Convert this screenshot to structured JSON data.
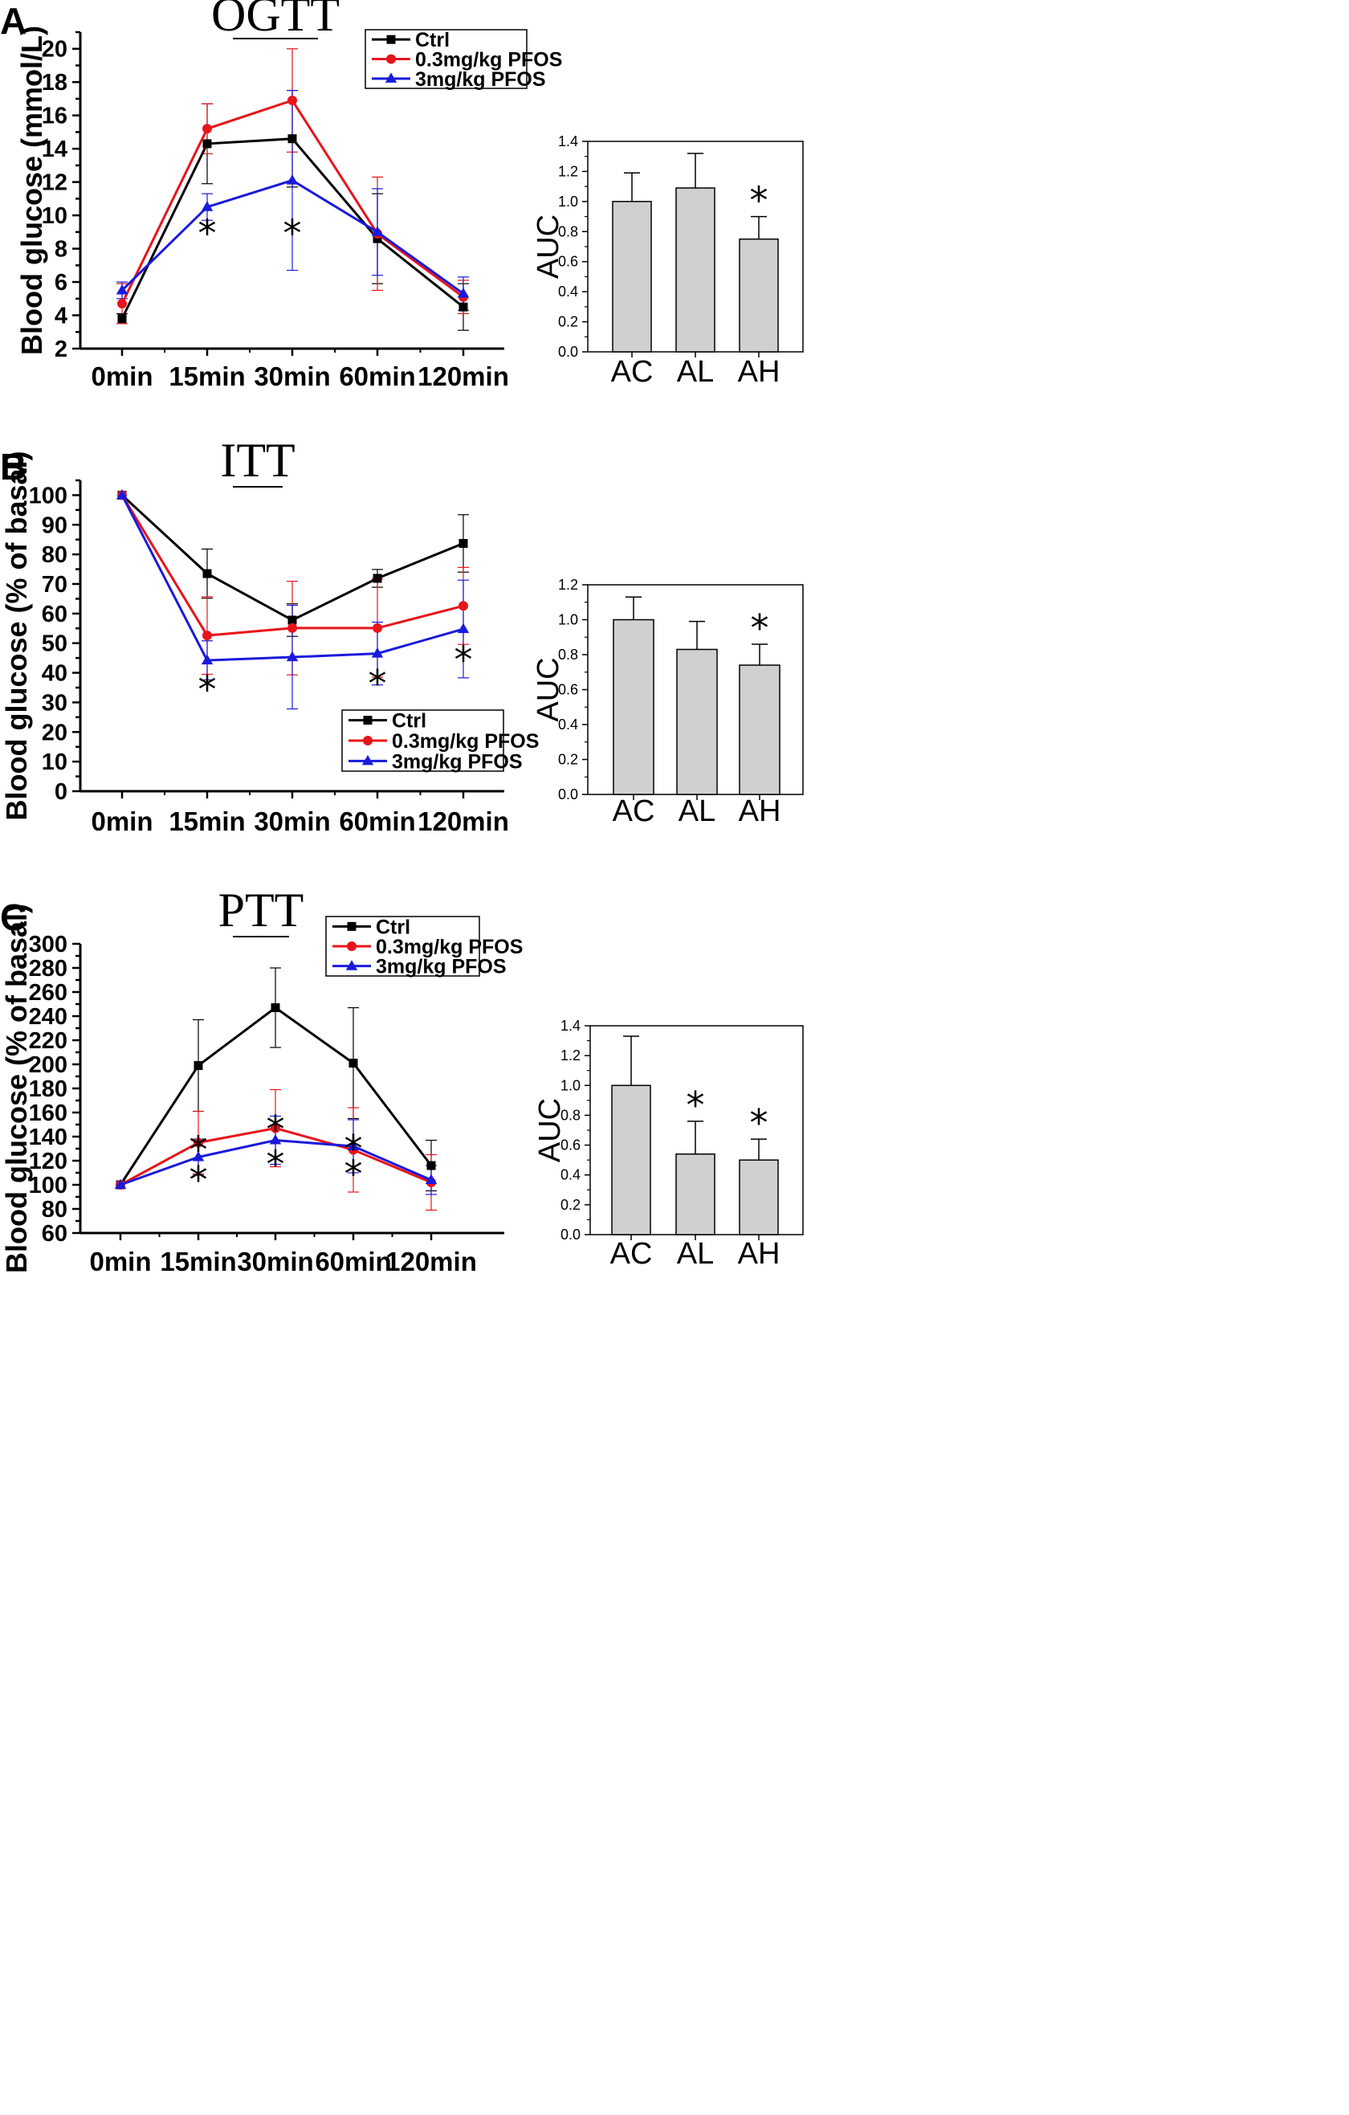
{
  "chart_data": [
    {
      "panel": "A",
      "type": "line",
      "title": "OGTT",
      "ylabel": "Blood glucose (mmol/L)",
      "xlabel": "",
      "categories": [
        "0min",
        "15min",
        "30min",
        "60min",
        "120min"
      ],
      "ylim": [
        2,
        21
      ],
      "yticks": [
        2,
        4,
        6,
        8,
        10,
        12,
        14,
        16,
        18,
        20
      ],
      "legend_position": "top-right",
      "series": [
        {
          "name": "Ctrl",
          "color": "#000000",
          "marker": "square",
          "values": [
            3.8,
            14.3,
            14.6,
            8.6,
            4.5
          ],
          "errors": [
            0.3,
            2.4,
            2.9,
            2.7,
            1.4
          ]
        },
        {
          "name": "0.3mg/kg PFOS",
          "color": "#e8141b",
          "marker": "circle",
          "values": [
            4.7,
            15.2,
            16.9,
            8.9,
            5.1
          ],
          "errors": [
            1.2,
            1.5,
            3.1,
            3.4,
            1.0
          ]
        },
        {
          "name": "3mg/kg PFOS",
          "color": "#1a1adc",
          "marker": "triangle",
          "values": [
            5.5,
            10.5,
            12.1,
            9.0,
            5.3
          ],
          "errors": [
            0.5,
            0.8,
            5.4,
            2.6,
            1.0
          ]
        }
      ],
      "significance": [
        {
          "text": "*",
          "index": 1,
          "value": 9.2
        },
        {
          "text": "*",
          "index": 2,
          "value": 9.2
        }
      ]
    },
    {
      "panel": "A",
      "type": "bar",
      "ylabel": "AUC",
      "categories": [
        "AC",
        "AL",
        "AH"
      ],
      "values": [
        1.0,
        1.09,
        0.75
      ],
      "errors": [
        0.19,
        0.23,
        0.15
      ],
      "ylim": [
        0,
        1.4
      ],
      "yticks": [
        "0.0",
        "0.2",
        "0.4",
        "0.6",
        "0.8",
        "1.0",
        "1.2",
        "1.4"
      ],
      "significance": [
        {
          "text": "*",
          "index": 2
        }
      ]
    },
    {
      "panel": "B",
      "type": "line",
      "title": "ITT",
      "ylabel": "Blood glucose (% of basal)",
      "xlabel": "",
      "categories": [
        "0min",
        "15min",
        "30min",
        "60min",
        "120min"
      ],
      "ylim": [
        0,
        105
      ],
      "yticks": [
        0,
        10,
        20,
        30,
        40,
        50,
        60,
        70,
        80,
        90,
        100
      ],
      "legend_position": "bottom-right",
      "series": [
        {
          "name": "Ctrl",
          "color": "#000000",
          "marker": "square",
          "values": [
            100,
            73.5,
            57.8,
            71.9,
            83.7
          ],
          "errors": [
            0,
            8.3,
            5.5,
            3.0,
            9.7
          ]
        },
        {
          "name": "0.3mg/kg PFOS",
          "color": "#e8141b",
          "marker": "circle",
          "values": [
            100,
            52.6,
            55.1,
            55.1,
            62.6
          ],
          "errors": [
            0,
            13.1,
            15.8,
            16.6,
            13.0
          ]
        },
        {
          "name": "3mg/kg PFOS",
          "color": "#1a1adc",
          "marker": "triangle",
          "values": [
            100,
            44.2,
            45.3,
            46.5,
            54.8
          ],
          "errors": [
            0,
            6.6,
            17.5,
            10.6,
            16.5
          ]
        }
      ],
      "significance": [
        {
          "text": "*",
          "index": 1,
          "value": 36
        },
        {
          "text": "*",
          "index": 3,
          "value": 38
        },
        {
          "text": "*",
          "index": 4,
          "value": 46
        }
      ]
    },
    {
      "panel": "B",
      "type": "bar",
      "ylabel": "AUC",
      "categories": [
        "AC",
        "AL",
        "AH"
      ],
      "values": [
        1.0,
        0.83,
        0.74
      ],
      "errors": [
        0.13,
        0.16,
        0.12
      ],
      "ylim": [
        0,
        1.2
      ],
      "yticks": [
        "0.0",
        "0.2",
        "0.4",
        "0.6",
        "0.8",
        "1.0",
        "1.2"
      ],
      "significance": [
        {
          "text": "*",
          "index": 2
        }
      ]
    },
    {
      "panel": "C",
      "type": "line",
      "title": "PTT",
      "ylabel": "Blood glucose (% of basal)",
      "xlabel": "",
      "categories": [
        "0min",
        "15min",
        "30min",
        "60min",
        "120min"
      ],
      "ylim": [
        60,
        300
      ],
      "yticks": [
        60,
        80,
        100,
        120,
        140,
        160,
        180,
        200,
        220,
        240,
        260,
        280,
        300
      ],
      "legend_position": "top-right",
      "series": [
        {
          "name": "Ctrl",
          "color": "#000000",
          "marker": "square",
          "values": [
            100,
            199,
            247,
            201,
            116
          ],
          "errors": [
            0,
            38,
            33,
            46,
            21
          ]
        },
        {
          "name": "0.3mg/kg PFOS",
          "color": "#e8141b",
          "marker": "circle",
          "values": [
            100,
            135,
            147,
            129,
            102
          ],
          "errors": [
            0,
            26,
            32,
            35,
            23
          ]
        },
        {
          "name": "3mg/kg PFOS",
          "color": "#1a1adc",
          "marker": "triangle",
          "values": [
            100,
            123,
            137,
            132,
            104
          ],
          "errors": [
            0,
            15,
            20,
            22,
            12
          ]
        }
      ],
      "significance": [
        {
          "text": "*",
          "index": 1,
          "value": 133
        },
        {
          "text": "*",
          "index": 1,
          "value": 108
        },
        {
          "text": "*",
          "index": 2,
          "value": 150
        },
        {
          "text": "*",
          "index": 2,
          "value": 121
        },
        {
          "text": "*",
          "index": 3,
          "value": 134
        },
        {
          "text": "*",
          "index": 3,
          "value": 113
        }
      ]
    },
    {
      "panel": "C",
      "type": "bar",
      "ylabel": "AUC",
      "categories": [
        "AC",
        "AL",
        "AH"
      ],
      "values": [
        1.0,
        0.54,
        0.5
      ],
      "errors": [
        0.33,
        0.22,
        0.14
      ],
      "ylim": [
        0,
        1.4
      ],
      "yticks": [
        "0.0",
        "0.2",
        "0.4",
        "0.6",
        "0.8",
        "1.0",
        "1.2",
        "1.4"
      ],
      "significance": [
        {
          "text": "*",
          "index": 1
        },
        {
          "text": "*",
          "index": 2
        }
      ]
    }
  ]
}
